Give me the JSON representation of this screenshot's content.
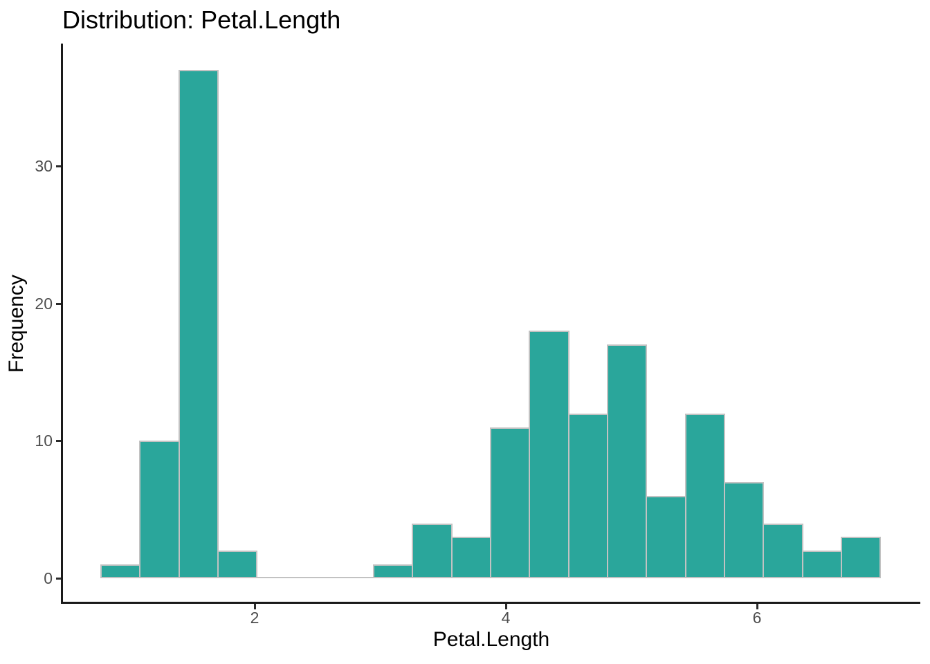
{
  "chart_data": {
    "type": "bar",
    "subtype": "histogram",
    "title": "Distribution: Petal.Length",
    "xlabel": "Petal.Length",
    "ylabel": "Frequency",
    "bin_start": 0.774,
    "bin_width": 0.3105,
    "counts": [
      1,
      10,
      37,
      2,
      0,
      0,
      0,
      1,
      4,
      3,
      11,
      18,
      12,
      17,
      6,
      12,
      7,
      4,
      2,
      3
    ],
    "x_ticks": [
      2,
      4,
      6
    ],
    "y_ticks": [
      0,
      10,
      20,
      30
    ],
    "xlim": [
      0.471,
      7.303
    ],
    "ylim": [
      -1.86,
      38.92
    ],
    "grid": false,
    "legend": "none",
    "bar_fill": "#2aa69b",
    "bar_border": "#c2c2c2",
    "axis_color": "#1a1a1a",
    "tick_color": "#2b2b2b",
    "tick_label_color": "#4d4d4d",
    "text_color": "#000000",
    "background": "#ffffff"
  }
}
